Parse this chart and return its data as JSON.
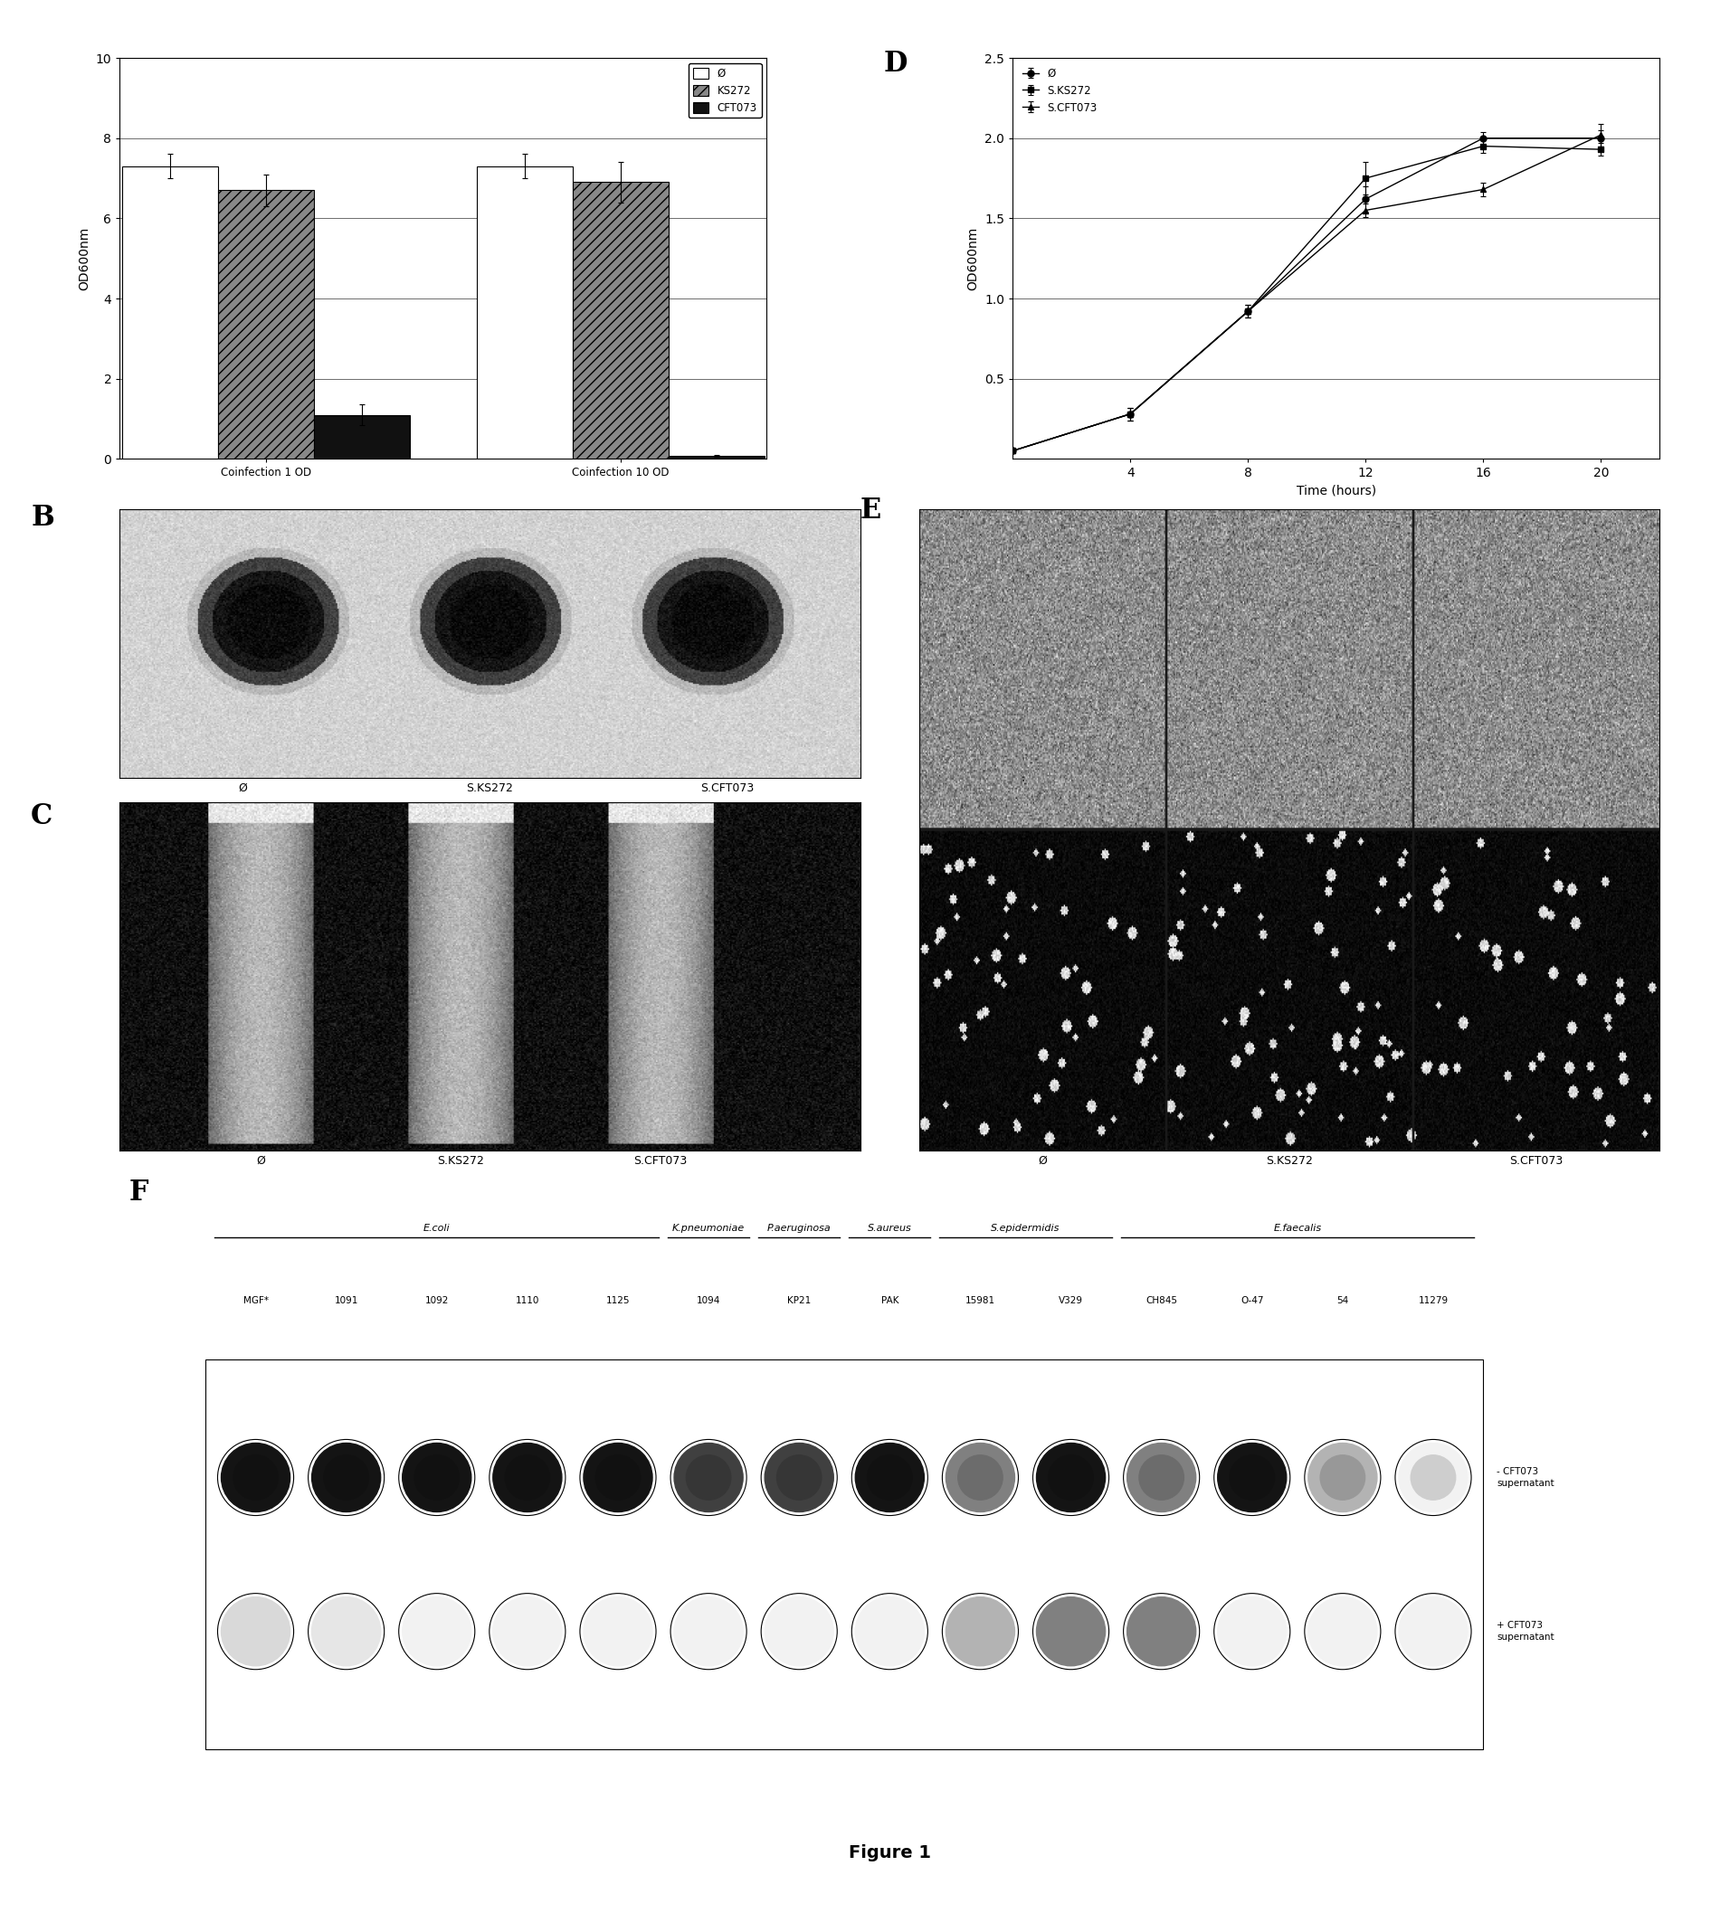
{
  "panel_A": {
    "groups": [
      "Coinfection 1 OD",
      "Coinfection 10 OD"
    ],
    "series": [
      {
        "label": "Ø",
        "color": "white",
        "edgecolor": "black",
        "hatch": null,
        "values": [
          7.3,
          7.3
        ],
        "errors": [
          0.3,
          0.3
        ]
      },
      {
        "label": "KS272",
        "color": "#888888",
        "edgecolor": "black",
        "hatch": "///",
        "values": [
          6.7,
          6.9
        ],
        "errors": [
          0.4,
          0.5
        ]
      },
      {
        "label": "CFT073",
        "color": "#111111",
        "edgecolor": "black",
        "hatch": null,
        "values": [
          1.1,
          0.07
        ],
        "errors": [
          0.25,
          0.02
        ]
      }
    ],
    "ylabel": "OD600nm",
    "ylim": [
      0,
      10
    ],
    "yticks": [
      0,
      2,
      4,
      6,
      8,
      10
    ],
    "group_positions": [
      0.3,
      1.15
    ],
    "bar_width": 0.23
  },
  "panel_D": {
    "x": [
      0,
      4,
      8,
      12,
      16,
      20
    ],
    "series": [
      {
        "label": "Ø",
        "color": "black",
        "marker": "o",
        "markersize": 5,
        "values": [
          0.05,
          0.28,
          0.92,
          1.62,
          2.0,
          2.0
        ],
        "errors": [
          0.01,
          0.04,
          0.04,
          0.08,
          0.04,
          0.05
        ]
      },
      {
        "label": "S.KS272",
        "color": "black",
        "marker": "s",
        "markersize": 5,
        "values": [
          0.05,
          0.28,
          0.92,
          1.75,
          1.95,
          1.93
        ],
        "errors": [
          0.01,
          0.04,
          0.04,
          0.1,
          0.04,
          0.04
        ]
      },
      {
        "label": "S.CFT073",
        "color": "black",
        "marker": "^",
        "markersize": 5,
        "values": [
          0.05,
          0.28,
          0.92,
          1.55,
          1.68,
          2.02
        ],
        "errors": [
          0.01,
          0.04,
          0.04,
          0.04,
          0.04,
          0.07
        ]
      }
    ],
    "xlabel": "Time (hours)",
    "ylabel": "OD600nm",
    "ylim": [
      0,
      2.5
    ],
    "yticks": [
      0.5,
      1.0,
      1.5,
      2.0,
      2.5
    ],
    "xticks": [
      4,
      8,
      12,
      16,
      20
    ],
    "xlim": [
      0,
      22
    ]
  },
  "panel_B": {
    "labels": [
      "Ø",
      "S.KS272",
      "S.CFT073"
    ]
  },
  "panel_C": {
    "labels": [
      "Ø",
      "S.KS272",
      "S.CFT073"
    ]
  },
  "panel_E": {
    "labels": [
      "Ø",
      "S.KS272",
      "S.CFT073"
    ]
  },
  "panel_F": {
    "strain_labels": [
      "MGF*",
      "1091",
      "1092",
      "1110",
      "1125",
      "1094",
      "KP21",
      "PAK",
      "15981",
      "V329",
      "CH845",
      "O-47",
      "54",
      "11279"
    ],
    "species_groups": [
      {
        "name": "E.coli",
        "indices": [
          0,
          1,
          2,
          3,
          4
        ]
      },
      {
        "name": "K.pneumoniae",
        "indices": [
          5
        ]
      },
      {
        "name": "P.aeruginosa",
        "indices": [
          6
        ]
      },
      {
        "name": "S.aureus",
        "indices": [
          7
        ]
      },
      {
        "name": "S.epidermidis",
        "indices": [
          8,
          9
        ]
      },
      {
        "name": "E.faecalis",
        "indices": [
          10,
          11,
          12,
          13
        ]
      }
    ],
    "top_fill": [
      0.08,
      0.08,
      0.08,
      0.08,
      0.08,
      0.25,
      0.25,
      0.08,
      0.5,
      0.08,
      0.5,
      0.08,
      0.7,
      0.95
    ],
    "bottom_fill": [
      0.85,
      0.9,
      0.95,
      0.95,
      0.95,
      0.95,
      0.95,
      0.95,
      0.7,
      0.5,
      0.5,
      0.95,
      0.95,
      0.95
    ],
    "row_labels": [
      "- CFT073\nsupernatant",
      "+ CFT073\nsupernatant"
    ]
  },
  "figure_title": "Figure 1"
}
